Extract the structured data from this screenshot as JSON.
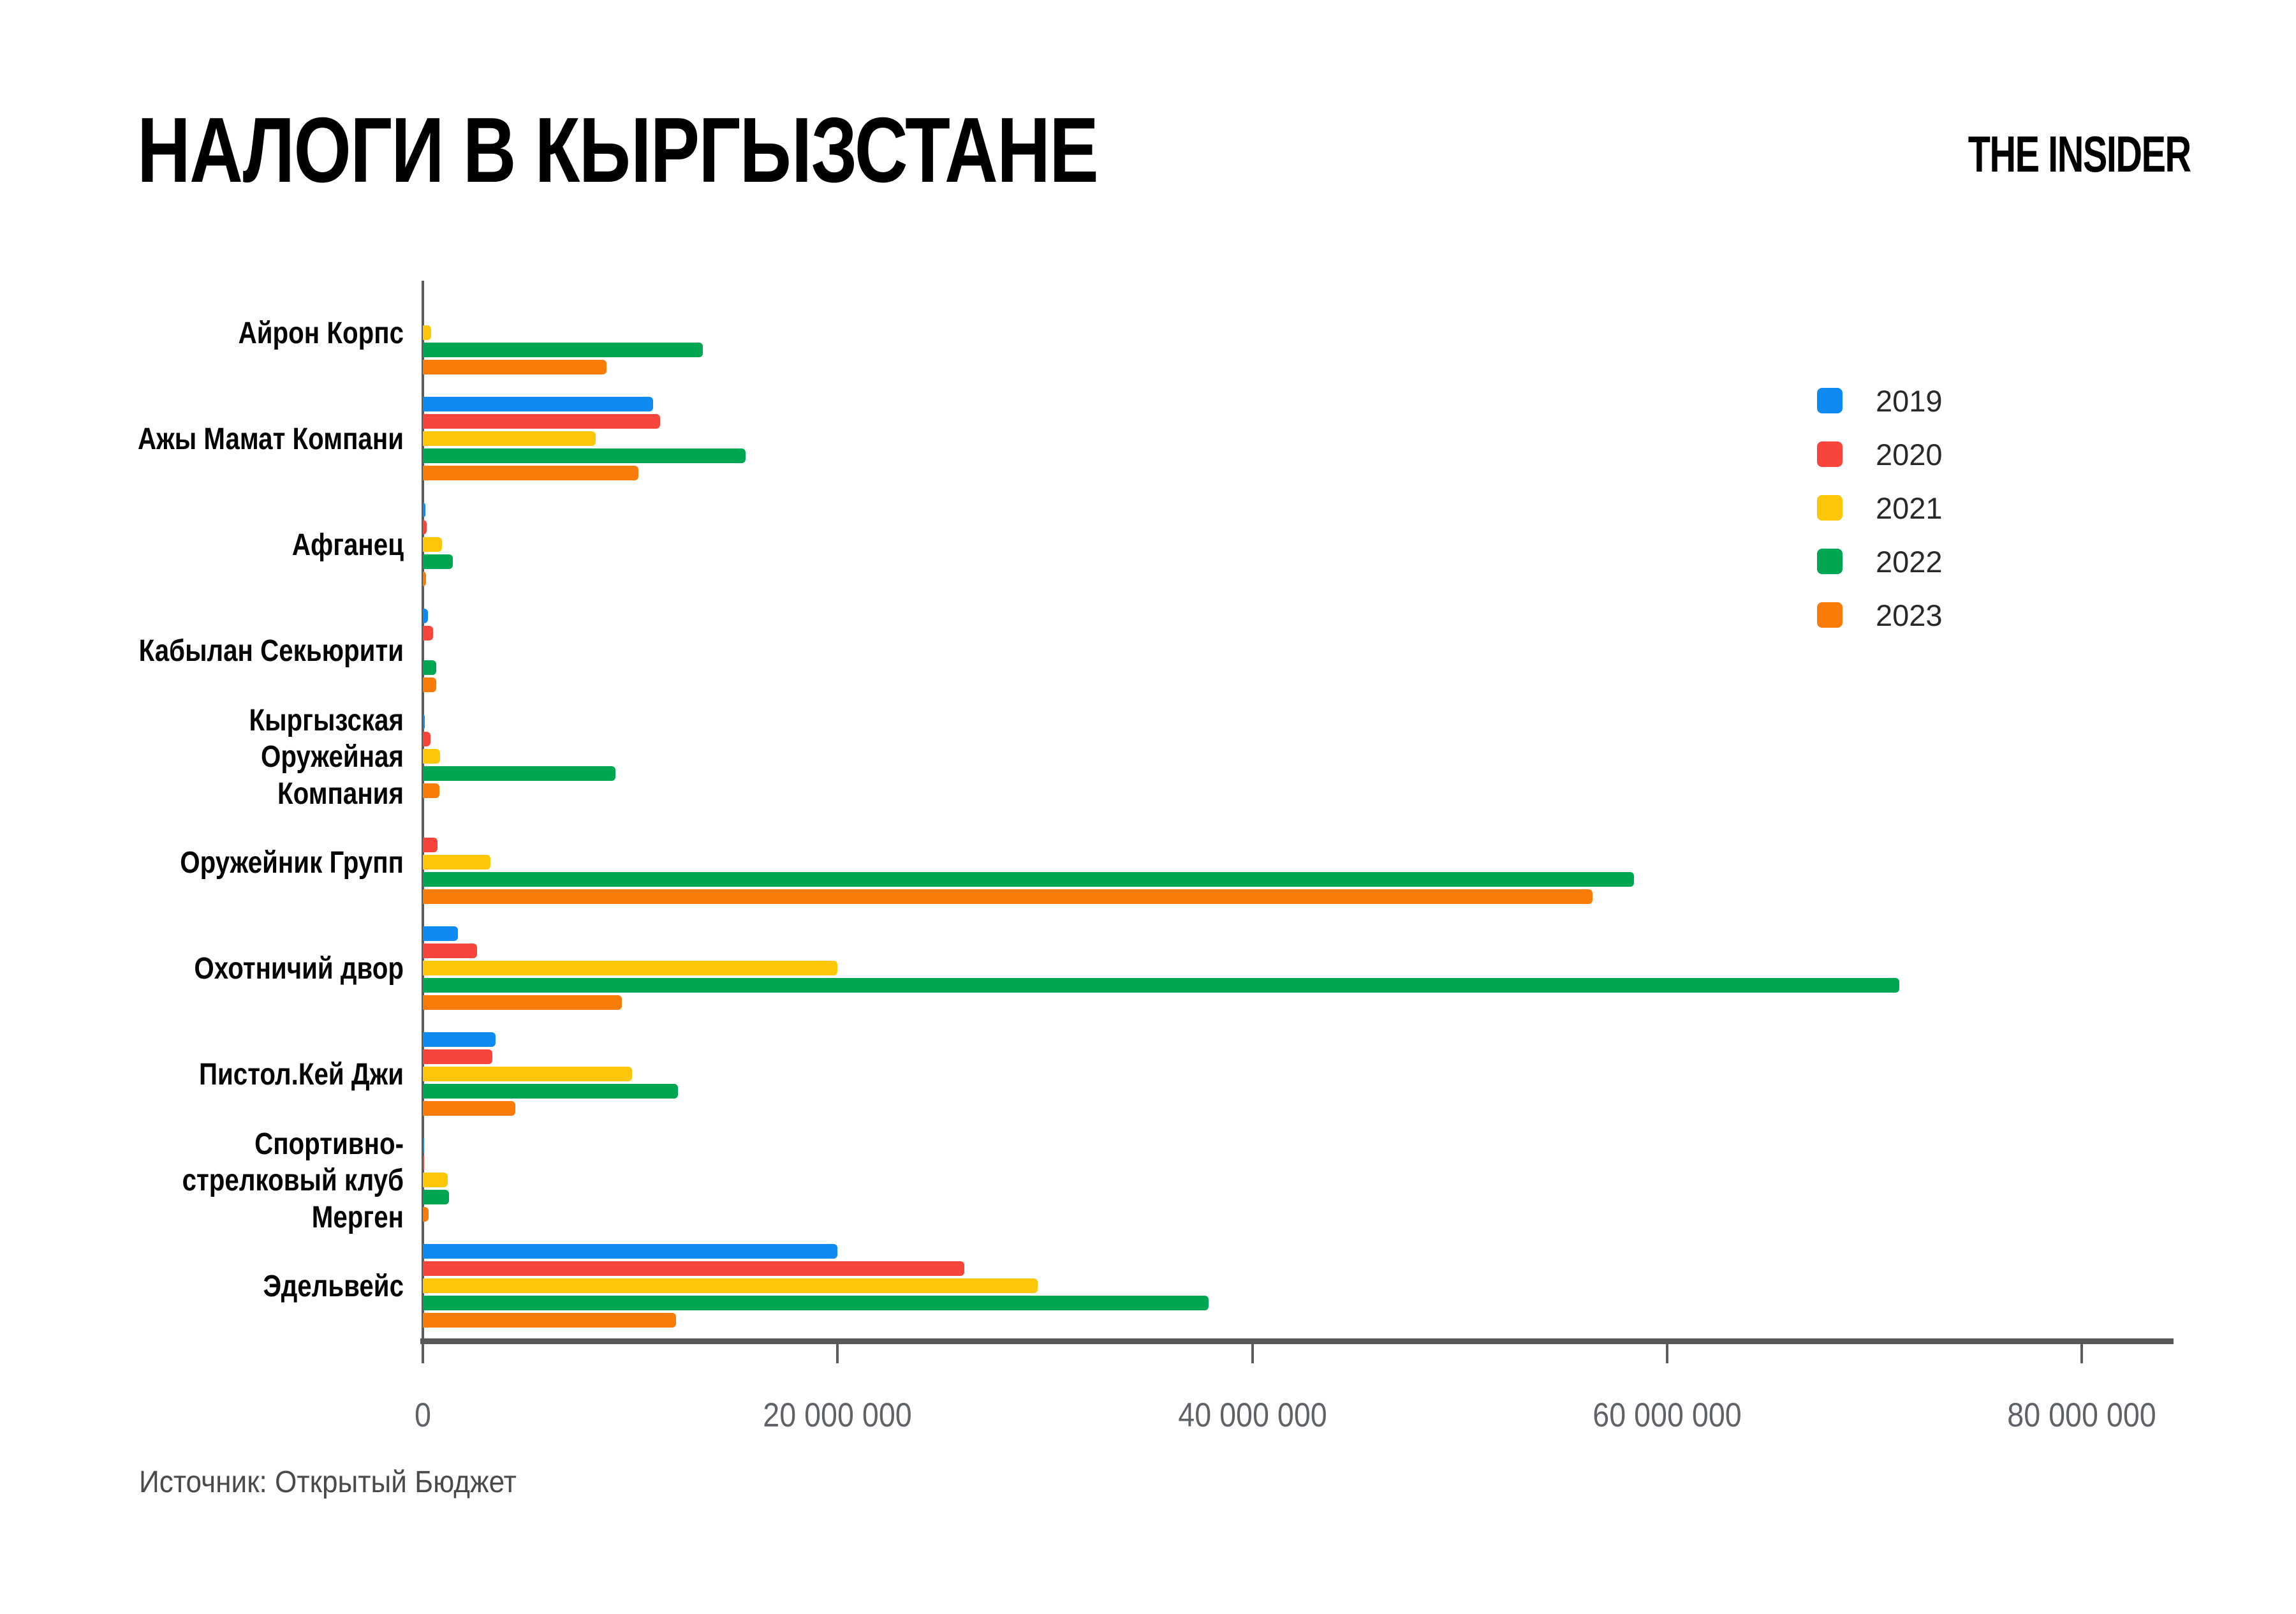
{
  "title": "НАЛОГИ В КЫРГЫЗСТАНЕ",
  "logo": "THE INSIDER",
  "source": "Источник: Открытый Бюджет",
  "colors": {
    "axis": "#58585a",
    "tick_label": "#5f6368",
    "year_2019": "#0D8BF2",
    "year_2020": "#F7453C",
    "year_2021": "#FDC608",
    "year_2022": "#00A651",
    "year_2023": "#F97C09"
  },
  "chart_data": {
    "type": "bar",
    "orientation": "horizontal",
    "title": "НАЛОГИ В КЫРГЫЗСТАНЕ",
    "unit": "KGS",
    "grid": false,
    "legend_position": "right",
    "categories": [
      "Айрон Корпс",
      "Ажы Мамат Компани",
      "Афганец",
      "Кабылан Секьюрити",
      "Кыргызская Оружейная Компания",
      "Оружейник Групп",
      "Охотничий двор",
      "Пистол.Кей Джи",
      "Спортивно-стрелковый клуб Мерген",
      "Эдельвейс"
    ],
    "series": [
      {
        "name": "2019",
        "color": "#0D8BF2",
        "values": [
          0,
          11100000,
          120000,
          250000,
          90000,
          0,
          1700000,
          3500000,
          70000,
          20000000
        ]
      },
      {
        "name": "2020",
        "color": "#F7453C",
        "values": [
          0,
          11450000,
          190000,
          490000,
          370000,
          720000,
          2600000,
          3350000,
          50000,
          26100000
        ]
      },
      {
        "name": "2021",
        "color": "#FDC608",
        "values": [
          400000,
          8350000,
          930000,
          0,
          830000,
          3250000,
          20000000,
          10100000,
          1200000,
          29650000
        ]
      },
      {
        "name": "2022",
        "color": "#00A651",
        "values": [
          13500000,
          15550000,
          1450000,
          660000,
          9300000,
          58400000,
          71200000,
          12300000,
          1250000,
          37900000
        ]
      },
      {
        "name": "2023",
        "color": "#F97C09",
        "values": [
          8850000,
          10400000,
          160000,
          640000,
          800000,
          56400000,
          9600000,
          4450000,
          270000,
          12200000
        ]
      }
    ],
    "x_ticks": [
      0,
      20000000,
      40000000,
      60000000,
      80000000
    ],
    "x_tick_labels": [
      "0",
      "20 000 000",
      "40 000 000",
      "60 000 000",
      "80 000 000"
    ],
    "x_max": 84300000,
    "xlabel": "",
    "ylabel": ""
  }
}
